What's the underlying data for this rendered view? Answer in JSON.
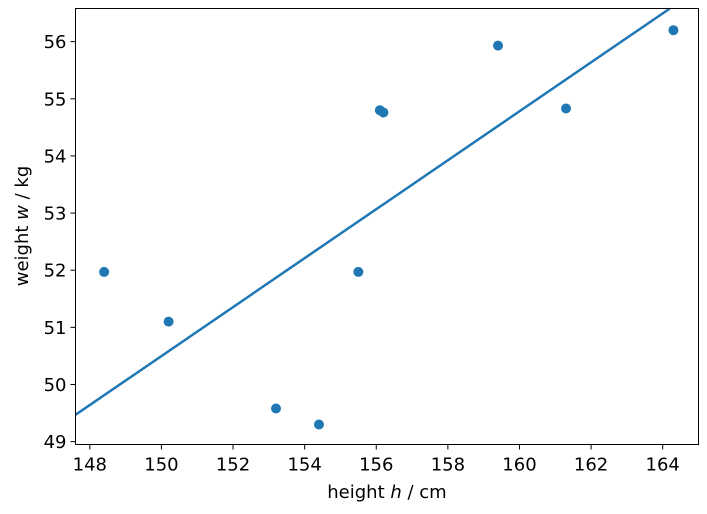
{
  "chart_data": {
    "type": "scatter",
    "title": "",
    "xlabel": {
      "prefix": "height ",
      "variable": "h",
      "suffix": " / cm"
    },
    "ylabel": {
      "prefix": "weight ",
      "variable": "w",
      "suffix": " / kg"
    },
    "xlim": [
      147.6,
      165.0
    ],
    "ylim": [
      48.95,
      56.58
    ],
    "xticks": [
      148,
      150,
      152,
      154,
      156,
      158,
      160,
      162,
      164
    ],
    "yticks": [
      49,
      50,
      51,
      52,
      53,
      54,
      55,
      56
    ],
    "grid": false,
    "legend": "none",
    "points": [
      {
        "x": 148.4,
        "y": 51.97
      },
      {
        "x": 150.2,
        "y": 51.1
      },
      {
        "x": 153.2,
        "y": 49.58
      },
      {
        "x": 154.4,
        "y": 49.3
      },
      {
        "x": 155.5,
        "y": 51.97
      },
      {
        "x": 156.1,
        "y": 54.8
      },
      {
        "x": 156.2,
        "y": 54.76
      },
      {
        "x": 159.4,
        "y": 55.93
      },
      {
        "x": 161.3,
        "y": 54.83
      },
      {
        "x": 164.3,
        "y": 56.2
      }
    ],
    "fit_line": {
      "x": [
        147.6,
        164.2
      ],
      "y": [
        49.47,
        56.58
      ]
    },
    "colors": {
      "points": "#1f77b4",
      "line": "#1f77b4",
      "axes": "#000000"
    }
  }
}
